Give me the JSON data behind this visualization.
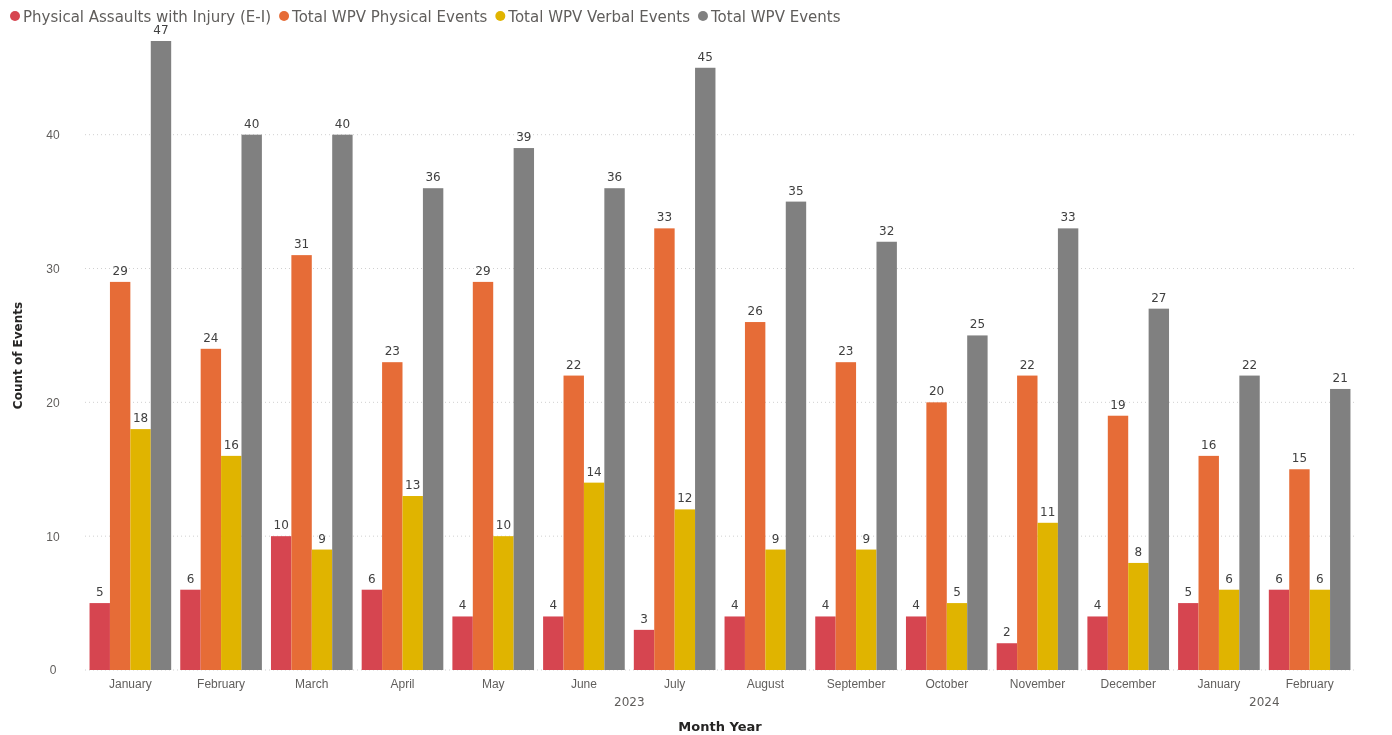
{
  "chart_data": {
    "type": "bar",
    "xlabel": "Month Year",
    "ylabel": "Count of Events",
    "categories": [
      "January",
      "February",
      "March",
      "April",
      "May",
      "June",
      "July",
      "August",
      "September",
      "October",
      "November",
      "December",
      "January",
      "February"
    ],
    "series": [
      {
        "name": "Physical Assaults with Injury (E-I)",
        "color": "#d64550",
        "values": [
          5,
          6,
          10,
          6,
          4,
          4,
          3,
          4,
          4,
          4,
          2,
          4,
          5,
          6
        ]
      },
      {
        "name": "Total WPV Physical Events",
        "color": "#e66c37",
        "values": [
          29,
          24,
          31,
          23,
          29,
          22,
          33,
          26,
          23,
          20,
          22,
          19,
          16,
          15
        ]
      },
      {
        "name": "Total WPV Verbal Events",
        "color": "#e0b400",
        "values": [
          18,
          16,
          9,
          13,
          10,
          14,
          12,
          9,
          9,
          5,
          11,
          8,
          6,
          6
        ]
      },
      {
        "name": "Total WPV Events",
        "color": "#808080",
        "values": [
          47,
          40,
          40,
          36,
          39,
          36,
          45,
          35,
          32,
          25,
          33,
          27,
          22,
          21
        ]
      }
    ],
    "ylim": [
      0,
      47
    ],
    "yticks": [
      0,
      10,
      20,
      30,
      40
    ],
    "grid": "y",
    "legend": "top left",
    "data_labels": true,
    "annotations": [
      "2023",
      "2024"
    ]
  }
}
